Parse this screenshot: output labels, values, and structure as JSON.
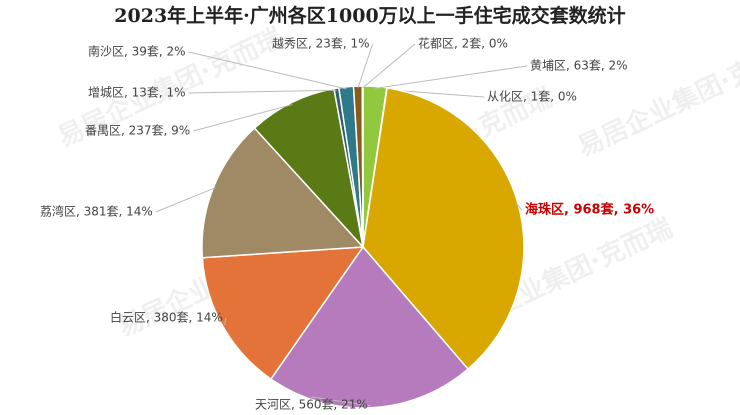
{
  "chart_data": {
    "type": "pie",
    "title": "2023年上半年·广州各区1000万以上一手住宅成交套数统计",
    "watermark": "易居企业集团·克而瑞",
    "values": [
      63,
      1,
      968,
      560,
      380,
      381,
      237,
      13,
      39,
      23,
      2
    ],
    "value_labels": [
      "黄埔区, 63套, 2%",
      "从化区, 1套, 0%",
      "海珠区, 968套, 36%",
      "天河区, 560套, 21%",
      "白云区, 380套, 14%",
      "荔湾区, 381套, 14%",
      "番禺区, 237套, 9%",
      "增城区, 13套, 1%",
      "南沙区, 39套, 2%",
      "越秀区, 23套, 1%",
      "花都区, 2套, 0%"
    ],
    "colors": [
      "#92c83e",
      "#9a9a9a",
      "#d9a800",
      "#b57bbd",
      "#e4733a",
      "#a08a66",
      "#5a7a16",
      "#2f5f73",
      "#2f7a8a",
      "#8a5a1a",
      "#c98a2a"
    ],
    "highlight_color": "#cc0000"
  }
}
